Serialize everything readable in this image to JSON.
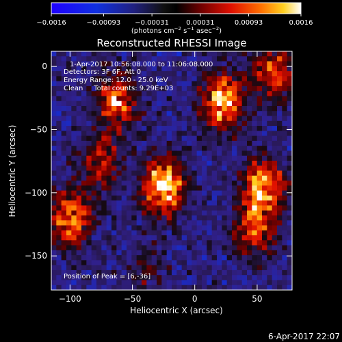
{
  "chart_data": {
    "type": "heatmap",
    "title": "Reconstructed RHESSI Image",
    "xlabel": "Heliocentric X (arcsec)",
    "ylabel": "Heliocentric Y (arcsec)",
    "xlim": [
      -115,
      78
    ],
    "ylim": [
      -177,
      12
    ],
    "x_ticks": [
      -100,
      -50,
      0,
      50
    ],
    "x_tick_labels": [
      "−100",
      "−50",
      "0",
      "50"
    ],
    "y_ticks": [
      0,
      -50,
      -100,
      -150
    ],
    "y_tick_labels": [
      "0",
      "−50",
      "−100",
      "−150"
    ],
    "colorbar": {
      "range": [
        -0.0016,
        0.0016
      ],
      "tick_values": [
        -0.0016,
        -0.00093,
        -0.00031,
        0.00031,
        0.00093,
        0.0016
      ],
      "tick_labels": [
        "−0.0016",
        "−0.00093",
        "−0.00031",
        "0.00031",
        "0.00093",
        "0.0016"
      ],
      "unit_prefix": "(photons cm",
      "unit_exp1": "−2",
      "unit_mid": " s",
      "unit_exp2": "−1",
      "unit_mid2": " asec",
      "unit_exp3": "−2",
      "unit_suffix": ")"
    },
    "info_lines": [
      "1-Apr-2017 10:56:08.000 to 11:06:08.000",
      "Detectors: 3F 6F, Att 0",
      "Energy Range: 12.0 - 25.0 keV",
      "Clean     Total counts: 9.29E+03"
    ],
    "peak_text": "Position of Peak = [6,-36]",
    "peak": {
      "x": 6,
      "y": -36
    },
    "bright_regions": [
      {
        "x": -25,
        "y": -95,
        "level": 0.95
      },
      {
        "x": 22,
        "y": -28,
        "level": 0.85
      },
      {
        "x": -62,
        "y": -28,
        "level": 0.75
      },
      {
        "x": 63,
        "y": -5,
        "level": 0.7
      },
      {
        "x": -100,
        "y": -120,
        "level": 0.8
      },
      {
        "x": 55,
        "y": -95,
        "level": 0.85
      },
      {
        "x": 48,
        "y": -130,
        "level": 0.7
      },
      {
        "x": -75,
        "y": -75,
        "level": 0.6
      },
      {
        "x": -40,
        "y": -160,
        "level": 0.45
      }
    ]
  },
  "timestamp": "6-Apr-2017 22:07"
}
